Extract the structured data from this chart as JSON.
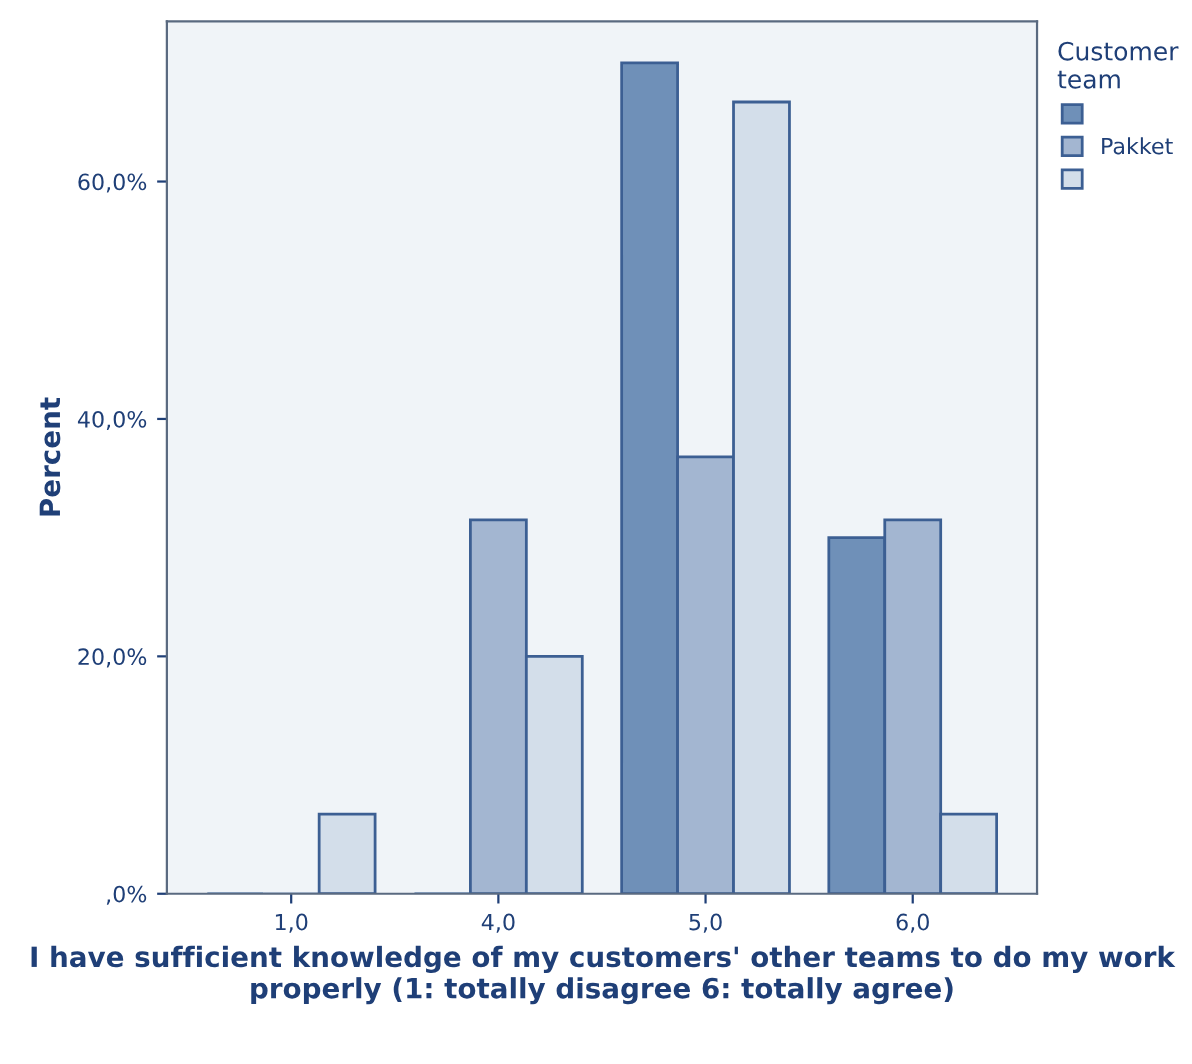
{
  "chart_data": {
    "type": "bar",
    "xlabel": "I have sufficient knowledge of my customers' other teams to do my work properly (1: totally disagree 6: totally agree)",
    "ylabel": "Percent",
    "legend_title": "Customer\nteam",
    "categories": [
      "1,0",
      "4,0",
      "5,0",
      "6,0"
    ],
    "series": [
      {
        "color": "#6f90b8",
        "values": [
          0,
          0,
          70,
          30
        ]
      },
      {
        "name": "Pakket",
        "color": "#a3b6d1",
        "values": [
          0,
          31.5,
          36.8,
          31.5
        ]
      },
      {
        "color": "#d3deea",
        "values": [
          6.7,
          20,
          66.7,
          6.7
        ]
      }
    ],
    "ylim": [
      0,
      73.5
    ],
    "yticks": [
      {
        "value": 0,
        "label": ",0%"
      },
      {
        "value": 20,
        "label": "20,0%"
      },
      {
        "value": 40,
        "label": "40,0%"
      },
      {
        "value": 60,
        "label": "60,0%"
      }
    ],
    "grid": false,
    "legend": "right"
  }
}
